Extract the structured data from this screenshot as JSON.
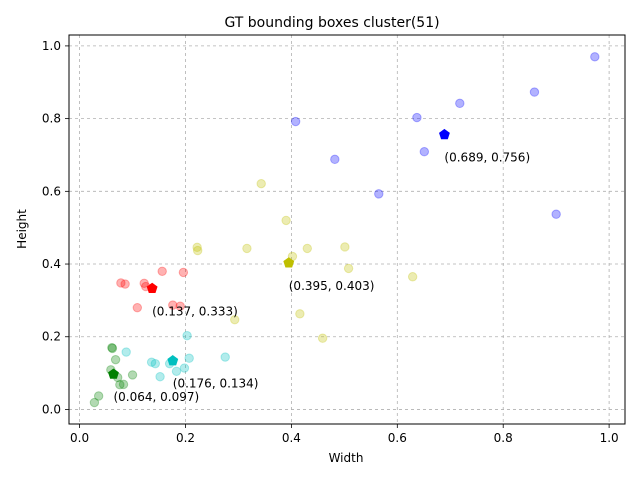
{
  "chart_data": {
    "type": "scatter",
    "title": "GT bounding boxes cluster(51)",
    "xlabel": "Width",
    "ylabel": "Height",
    "xlim": [
      -0.02,
      1.03
    ],
    "ylim": [
      -0.04,
      1.03
    ],
    "xticks": [
      "0.0",
      "0.2",
      "0.4",
      "0.6",
      "0.8",
      "1.0"
    ],
    "yticks": [
      "0.0",
      "0.2",
      "0.4",
      "0.6",
      "0.8",
      "1.0"
    ],
    "grid": true,
    "series": [
      {
        "color": "#0000ff",
        "points": [
          [
            0.408,
            0.792
          ],
          [
            0.482,
            0.688
          ],
          [
            0.565,
            0.593
          ],
          [
            0.637,
            0.803
          ],
          [
            0.651,
            0.709
          ],
          [
            0.718,
            0.842
          ],
          [
            0.859,
            0.873
          ],
          [
            0.9,
            0.537
          ],
          [
            0.973,
            0.97
          ]
        ],
        "centroid": [
          0.689,
          0.756
        ],
        "label": "(0.689, 0.756)"
      },
      {
        "color": "#bfbf00",
        "points": [
          [
            0.343,
            0.621
          ],
          [
            0.39,
            0.52
          ],
          [
            0.402,
            0.421
          ],
          [
            0.222,
            0.446
          ],
          [
            0.223,
            0.437
          ],
          [
            0.316,
            0.443
          ],
          [
            0.43,
            0.443
          ],
          [
            0.501,
            0.447
          ],
          [
            0.508,
            0.388
          ],
          [
            0.629,
            0.365
          ],
          [
            0.293,
            0.247
          ],
          [
            0.416,
            0.263
          ],
          [
            0.459,
            0.196
          ]
        ],
        "centroid": [
          0.395,
          0.403
        ],
        "label": "(0.395, 0.403)"
      },
      {
        "color": "#ff0000",
        "points": [
          [
            0.078,
            0.348
          ],
          [
            0.086,
            0.345
          ],
          [
            0.122,
            0.347
          ],
          [
            0.125,
            0.338
          ],
          [
            0.156,
            0.38
          ],
          [
            0.196,
            0.377
          ],
          [
            0.109,
            0.28
          ],
          [
            0.176,
            0.287
          ],
          [
            0.19,
            0.284
          ]
        ],
        "centroid": [
          0.137,
          0.333
        ],
        "label": "(0.137, 0.333)"
      },
      {
        "color": "#00bfbf",
        "points": [
          [
            0.088,
            0.158
          ],
          [
            0.136,
            0.13
          ],
          [
            0.143,
            0.126
          ],
          [
            0.152,
            0.09
          ],
          [
            0.17,
            0.126
          ],
          [
            0.183,
            0.105
          ],
          [
            0.198,
            0.114
          ],
          [
            0.203,
            0.203
          ],
          [
            0.207,
            0.141
          ],
          [
            0.275,
            0.144
          ]
        ],
        "centroid": [
          0.176,
          0.134
        ],
        "label": "(0.176, 0.134)"
      },
      {
        "color": "#008000",
        "points": [
          [
            0.061,
            0.17
          ],
          [
            0.062,
            0.168
          ],
          [
            0.068,
            0.137
          ],
          [
            0.059,
            0.109
          ],
          [
            0.076,
            0.068
          ],
          [
            0.083,
            0.069
          ],
          [
            0.1,
            0.095
          ],
          [
            0.036,
            0.037
          ],
          [
            0.028,
            0.019
          ],
          [
            0.072,
            0.088
          ]
        ],
        "centroid": [
          0.064,
          0.097
        ],
        "label": "(0.064, 0.097)"
      }
    ]
  }
}
